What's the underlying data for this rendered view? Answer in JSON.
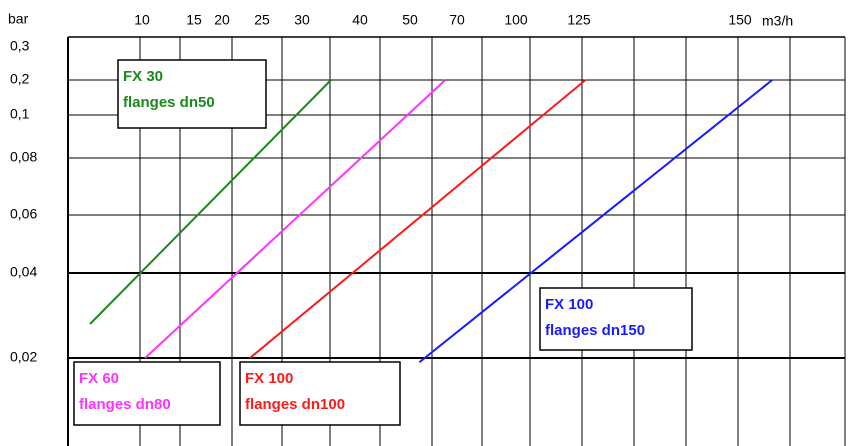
{
  "chart_data": {
    "type": "line",
    "x_label": "m3/h",
    "y_label": "bar",
    "xticks": [
      10,
      15,
      20,
      25,
      30,
      40,
      50,
      70,
      100,
      125,
      150
    ],
    "yticks": [
      {
        "value": 0.3,
        "label": "0,3"
      },
      {
        "value": 0.2,
        "label": "0,2"
      },
      {
        "value": 0.1,
        "label": "0,1"
      },
      {
        "value": 0.08,
        "label": "0,08"
      },
      {
        "value": 0.06,
        "label": "0,06"
      },
      {
        "value": 0.04,
        "label": "0,04"
      },
      {
        "value": 0.02,
        "label": "0,02"
      }
    ],
    "grid": true,
    "series": [
      {
        "name": "FX 30",
        "label": "flanges dn50",
        "color": "#1a8a1a",
        "x": [
          5,
          35
        ],
        "values": [
          0.028,
          0.2
        ]
      },
      {
        "name": "FX 60",
        "label": "flanges dn80",
        "color": "#ff33ff",
        "x": [
          10.3,
          65
        ],
        "values": [
          0.02,
          0.2
        ]
      },
      {
        "name": "FX 100",
        "label": "flanges dn100",
        "color": "#ff1a1a",
        "x": [
          23.5,
          126
        ],
        "values": [
          0.02,
          0.2
        ]
      },
      {
        "name": "FX 100",
        "label": "flanges dn150",
        "color": "#1a1aff",
        "x": [
          54,
          155
        ],
        "values": [
          0.019,
          0.2
        ]
      }
    ]
  }
}
